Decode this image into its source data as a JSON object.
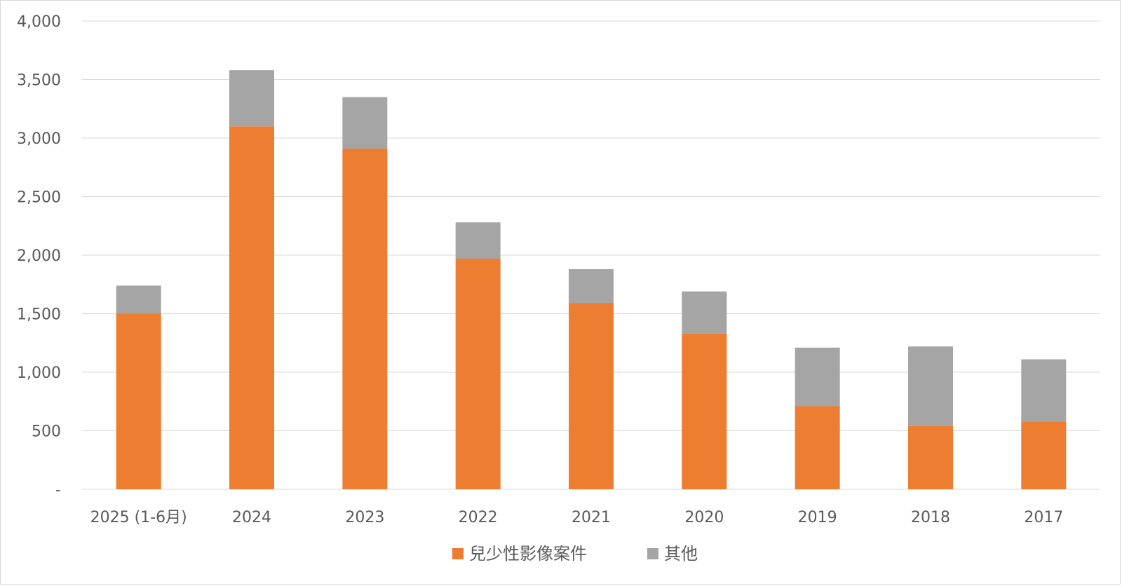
{
  "chart_data": {
    "type": "bar",
    "stacked": true,
    "categories": [
      "2025 (1-6月)",
      "2024",
      "2023",
      "2022",
      "2021",
      "2020",
      "2019",
      "2018",
      "2017"
    ],
    "series": [
      {
        "name": "兒少性影像案件",
        "color": "#ED7D31",
        "values": [
          1500,
          3100,
          2910,
          1970,
          1590,
          1330,
          710,
          540,
          580
        ]
      },
      {
        "name": "其他",
        "color": "#A5A5A5",
        "values": [
          240,
          480,
          440,
          310,
          290,
          360,
          500,
          680,
          530
        ]
      }
    ],
    "ylim": [
      0,
      4000
    ],
    "yticks": [
      {
        "value": 0,
        "label": "-"
      },
      {
        "value": 500,
        "label": "500"
      },
      {
        "value": 1000,
        "label": "1,000"
      },
      {
        "value": 1500,
        "label": "1,500"
      },
      {
        "value": 2000,
        "label": "2,000"
      },
      {
        "value": 2500,
        "label": "2,500"
      },
      {
        "value": 3000,
        "label": "3,000"
      },
      {
        "value": 3500,
        "label": "3,500"
      },
      {
        "value": 4000,
        "label": "4,000"
      }
    ],
    "grid": true,
    "legend_position": "bottom",
    "gridline_color": "#d9d9d9"
  }
}
